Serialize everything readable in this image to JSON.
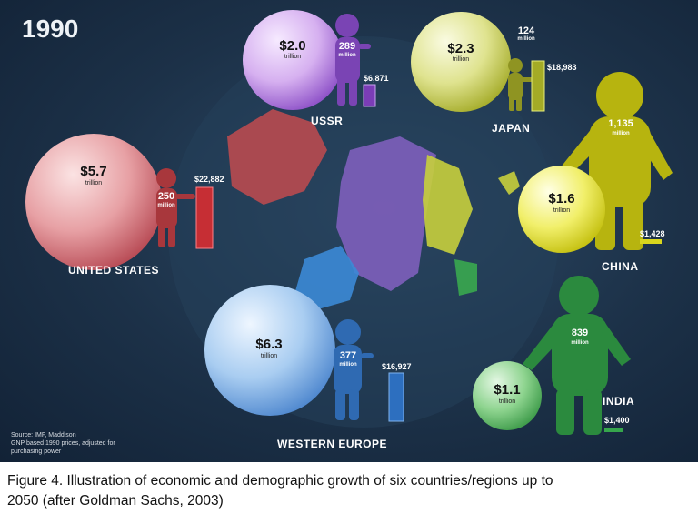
{
  "year": "1990",
  "regions": {
    "ussr": {
      "name": "USSR",
      "gdp": "$2.0",
      "gdp_unit": "trillion",
      "population": "289",
      "population_unit": "million",
      "income": "$6,871",
      "color": "#a46fd6"
    },
    "japan": {
      "name": "JAPAN",
      "gdp": "$2.3",
      "gdp_unit": "trillion",
      "population": "124",
      "population_unit": "million",
      "income": "$18,983",
      "color": "#c8cf3c"
    },
    "united_states": {
      "name": "UNITED STATES",
      "gdp": "$5.7",
      "gdp_unit": "trillion",
      "population": "250",
      "population_unit": "million",
      "income": "$22,882",
      "color": "#d0454a"
    },
    "china": {
      "name": "CHINA",
      "gdp": "$1.6",
      "gdp_unit": "trillion",
      "population": "1,135",
      "population_unit": "million",
      "income": "$1,428",
      "color": "#e3e11a"
    },
    "western_europe": {
      "name": "WESTERN EUROPE",
      "gdp": "$6.3",
      "gdp_unit": "trillion",
      "population": "377",
      "population_unit": "million",
      "income": "$16,927",
      "color": "#4a8fd8"
    },
    "india": {
      "name": "INDIA",
      "gdp": "$1.1",
      "gdp_unit": "trillion",
      "population": "839",
      "population_unit": "million",
      "income": "$1,400",
      "color": "#3aa84f"
    }
  },
  "source_lines": [
    "Source: IMF, Maddison",
    "GNP based 1990 prices, adjusted for",
    "purchasing power"
  ],
  "caption_lines": [
    "Figure 4. Illustration of economic and demographic growth of six countries/regions up to",
    "2050 (after Goldman Sachs, 2003)"
  ]
}
